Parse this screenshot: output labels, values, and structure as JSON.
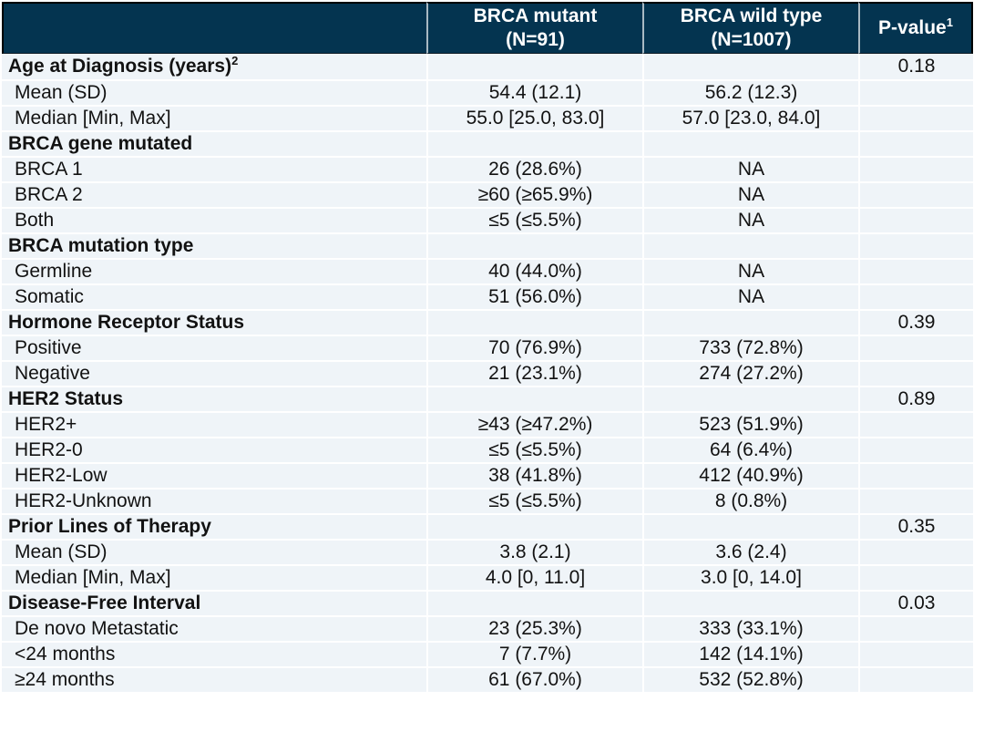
{
  "header": {
    "characteristic": "",
    "brca_mutant": {
      "line1": "BRCA mutant",
      "line2": "(N=91)"
    },
    "brca_wild_type": {
      "line1": "BRCA wild type",
      "line2": "(N=1007)"
    },
    "pvalue": {
      "label": "P-value",
      "sup": "1"
    }
  },
  "rows": [
    {
      "label": "Age at Diagnosis (years)",
      "label_sup": "2",
      "bold": true,
      "mutant": "",
      "wild": "",
      "pvalue": "0.18"
    },
    {
      "label": "Mean (SD)",
      "bold": false,
      "mutant": "54.4 (12.1)",
      "wild": "56.2 (12.3)",
      "pvalue": ""
    },
    {
      "label": "Median [Min, Max]",
      "bold": false,
      "mutant": "55.0 [25.0, 83.0]",
      "wild": "57.0 [23.0, 84.0]",
      "pvalue": ""
    },
    {
      "label": "BRCA gene mutated",
      "bold": true,
      "mutant": "",
      "wild": "",
      "pvalue": ""
    },
    {
      "label": "BRCA 1",
      "bold": false,
      "mutant": "26 (28.6%)",
      "wild": "NA",
      "pvalue": ""
    },
    {
      "label": "BRCA 2",
      "bold": false,
      "mutant": "≥60 (≥65.9%)",
      "wild": "NA",
      "pvalue": ""
    },
    {
      "label": "Both",
      "bold": false,
      "mutant": "≤5 (≤5.5%)",
      "wild": "NA",
      "pvalue": ""
    },
    {
      "label": "BRCA mutation type",
      "bold": true,
      "mutant": "",
      "wild": "",
      "pvalue": ""
    },
    {
      "label": "Germline",
      "bold": false,
      "mutant": "40 (44.0%)",
      "wild": "NA",
      "pvalue": ""
    },
    {
      "label": "Somatic",
      "bold": false,
      "mutant": "51 (56.0%)",
      "wild": "NA",
      "pvalue": ""
    },
    {
      "label": "Hormone Receptor Status",
      "bold": true,
      "mutant": "",
      "wild": "",
      "pvalue": "0.39"
    },
    {
      "label": "Positive",
      "bold": false,
      "mutant": "70 (76.9%)",
      "wild": "733 (72.8%)",
      "pvalue": ""
    },
    {
      "label": "Negative",
      "bold": false,
      "mutant": "21 (23.1%)",
      "wild": "274 (27.2%)",
      "pvalue": ""
    },
    {
      "label": "HER2 Status",
      "bold": true,
      "mutant": "",
      "wild": "",
      "pvalue": "0.89"
    },
    {
      "label": "HER2+",
      "bold": false,
      "mutant": "≥43 (≥47.2%)",
      "wild": "523 (51.9%)",
      "pvalue": ""
    },
    {
      "label": "HER2-0",
      "bold": false,
      "mutant": "≤5 (≤5.5%)",
      "wild": "64 (6.4%)",
      "pvalue": ""
    },
    {
      "label": "HER2-Low",
      "bold": false,
      "mutant": "38 (41.8%)",
      "wild": "412 (40.9%)",
      "pvalue": ""
    },
    {
      "label": "HER2-Unknown",
      "bold": false,
      "mutant": "≤5 (≤5.5%)",
      "wild": "8 (0.8%)",
      "pvalue": ""
    },
    {
      "label": "Prior Lines of Therapy",
      "bold": true,
      "mutant": "",
      "wild": "",
      "pvalue": "0.35"
    },
    {
      "label": "Mean (SD)",
      "bold": false,
      "mutant": "3.8 (2.1)",
      "wild": "3.6 (2.4)",
      "pvalue": ""
    },
    {
      "label": "Median [Min, Max]",
      "bold": false,
      "mutant": "4.0 [0, 11.0]",
      "wild": "3.0 [0, 14.0]",
      "pvalue": ""
    },
    {
      "label": "Disease-Free Interval",
      "bold": true,
      "mutant": "",
      "wild": "",
      "pvalue": "0.03"
    },
    {
      "label": "De novo Metastatic",
      "bold": false,
      "mutant": "23 (25.3%)",
      "wild": "333 (33.1%)",
      "pvalue": ""
    },
    {
      "label": "<24 months",
      "bold": false,
      "mutant": "7 (7.7%)",
      "wild": "142 (14.1%)",
      "pvalue": ""
    },
    {
      "label": "≥24 months",
      "bold": false,
      "mutant": "61 (67.0%)",
      "wild": "532 (52.8%)",
      "pvalue": ""
    }
  ],
  "colors": {
    "header_bg": "#043450",
    "header_text": "#ffffff",
    "row_bg": "#eff4f8",
    "body_text": "#121212",
    "grid_line": "#ffffff",
    "header_divider": "#a9b9c3",
    "outer_border": "#000000"
  }
}
